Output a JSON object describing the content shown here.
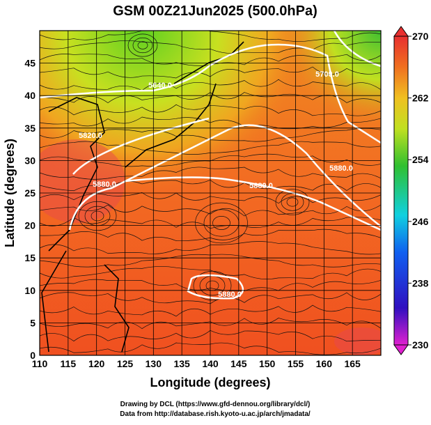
{
  "title": "GSM 00Z21Jun2025 (500.0hPa)",
  "x_axis": {
    "label": "Longitude (degrees)",
    "lim": [
      110,
      170
    ],
    "ticks": [
      110,
      115,
      120,
      125,
      130,
      135,
      140,
      145,
      150,
      155,
      160,
      165
    ]
  },
  "y_axis": {
    "label": "Latitude  (degrees)",
    "lim": [
      0,
      50
    ],
    "ticks": [
      0,
      5,
      10,
      15,
      20,
      25,
      30,
      35,
      40,
      45
    ]
  },
  "colorbar": {
    "lim": [
      230,
      270
    ],
    "ticks": [
      230,
      238,
      246,
      254,
      262,
      270
    ]
  },
  "contour_labels": [
    "5640.0",
    "5820.0",
    "5880.0",
    "5880.0",
    "5880.0",
    "5880.0",
    "5700.0"
  ],
  "credits": [
    "Drawing by DCL (https://www.gfd-dennou.org/library/dcl/)",
    "Data from http://database.rish.kyoto-u.ac.jp/arch/jmadata/"
  ]
}
